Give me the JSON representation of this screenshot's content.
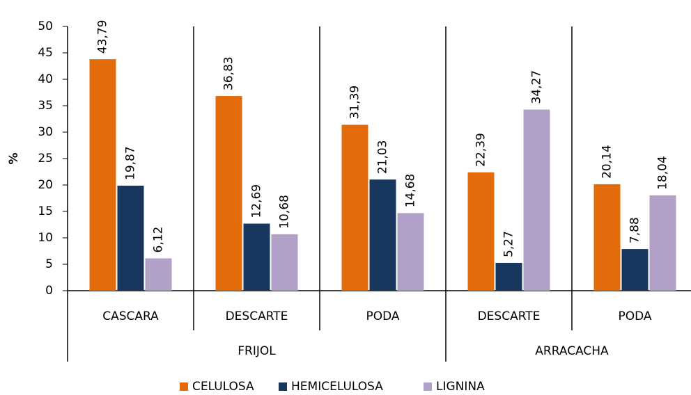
{
  "chart_data": {
    "type": "bar",
    "ylabel": "%",
    "groups": [
      {
        "label": "FRIJOL",
        "categories": [
          "CASCARA",
          "DESCARTE",
          "PODA"
        ]
      },
      {
        "label": "ARRACACHA",
        "categories": [
          "DESCARTE",
          "PODA"
        ]
      }
    ],
    "series": [
      {
        "name": "CELULOSA",
        "color": "#e36c0a",
        "values": [
          43.79,
          36.83,
          31.39,
          22.39,
          20.14
        ],
        "value_labels": [
          "43,79",
          "36,83",
          "31,39",
          "22,39",
          "20,14"
        ]
      },
      {
        "name": "HEMICELULOSA",
        "color": "#17375e",
        "values": [
          19.87,
          12.69,
          21.03,
          5.27,
          7.88
        ],
        "value_labels": [
          "19,87",
          "12,69",
          "21,03",
          "5,27",
          "7,88"
        ]
      },
      {
        "name": "LIGNINA",
        "color": "#b1a0c7",
        "values": [
          6.12,
          10.68,
          14.68,
          34.27,
          18.04
        ],
        "value_labels": [
          "6,12",
          "10,68",
          "14,68",
          "34,27",
          "18,04"
        ]
      }
    ],
    "ylim": [
      0,
      50
    ],
    "yticks": [
      0,
      5,
      10,
      15,
      20,
      25,
      30,
      35,
      40,
      45,
      50
    ],
    "legend": "bottom"
  }
}
